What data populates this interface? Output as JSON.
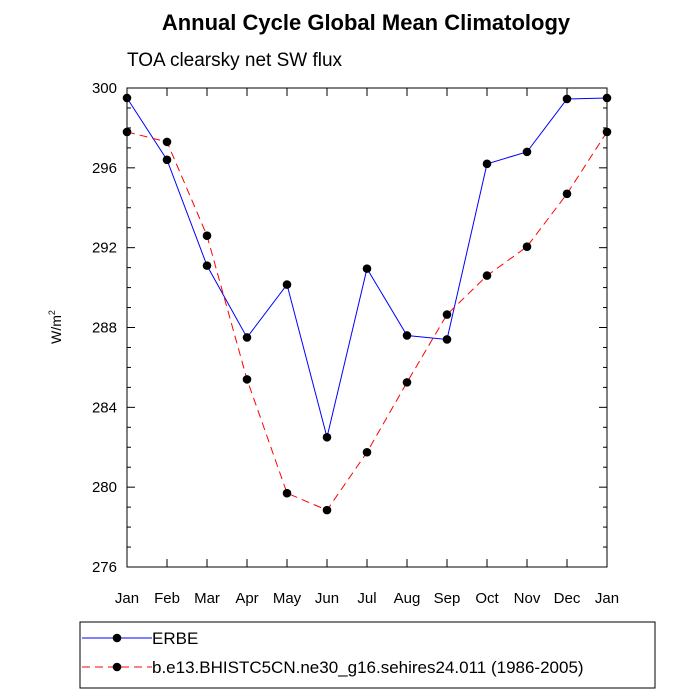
{
  "chart_data": {
    "type": "line",
    "title": "Annual Cycle Global Mean Climatology",
    "subtitle": "TOA clearsky net SW flux",
    "ylabel_base": "W/m",
    "ylabel_sup": "2",
    "xlabel": "",
    "categories": [
      "Jan",
      "Feb",
      "Mar",
      "Apr",
      "May",
      "Jun",
      "Jul",
      "Aug",
      "Sep",
      "Oct",
      "Nov",
      "Dec",
      "Jan"
    ],
    "ylim": [
      276,
      300
    ],
    "yticks": [
      276,
      280,
      284,
      288,
      292,
      296,
      300
    ],
    "series": [
      {
        "name": "ERBE",
        "color": "#0000ff",
        "dash": "solid",
        "marker": "circle",
        "values": [
          299.5,
          296.4,
          291.1,
          287.5,
          290.15,
          282.5,
          290.95,
          287.6,
          287.4,
          296.2,
          296.8,
          299.45,
          299.5
        ]
      },
      {
        "name": "b.e13.BHISTC5CN.ne30_g16.sehires24.011 (1986-2005)",
        "color": "#ff0000",
        "dash": "dashed",
        "marker": "circle",
        "values": [
          297.8,
          297.3,
          292.6,
          285.4,
          279.7,
          278.85,
          281.75,
          285.25,
          288.65,
          290.6,
          292.05,
          294.7,
          297.8
        ]
      }
    ],
    "grid": false,
    "legend_position": "bottom-left"
  }
}
